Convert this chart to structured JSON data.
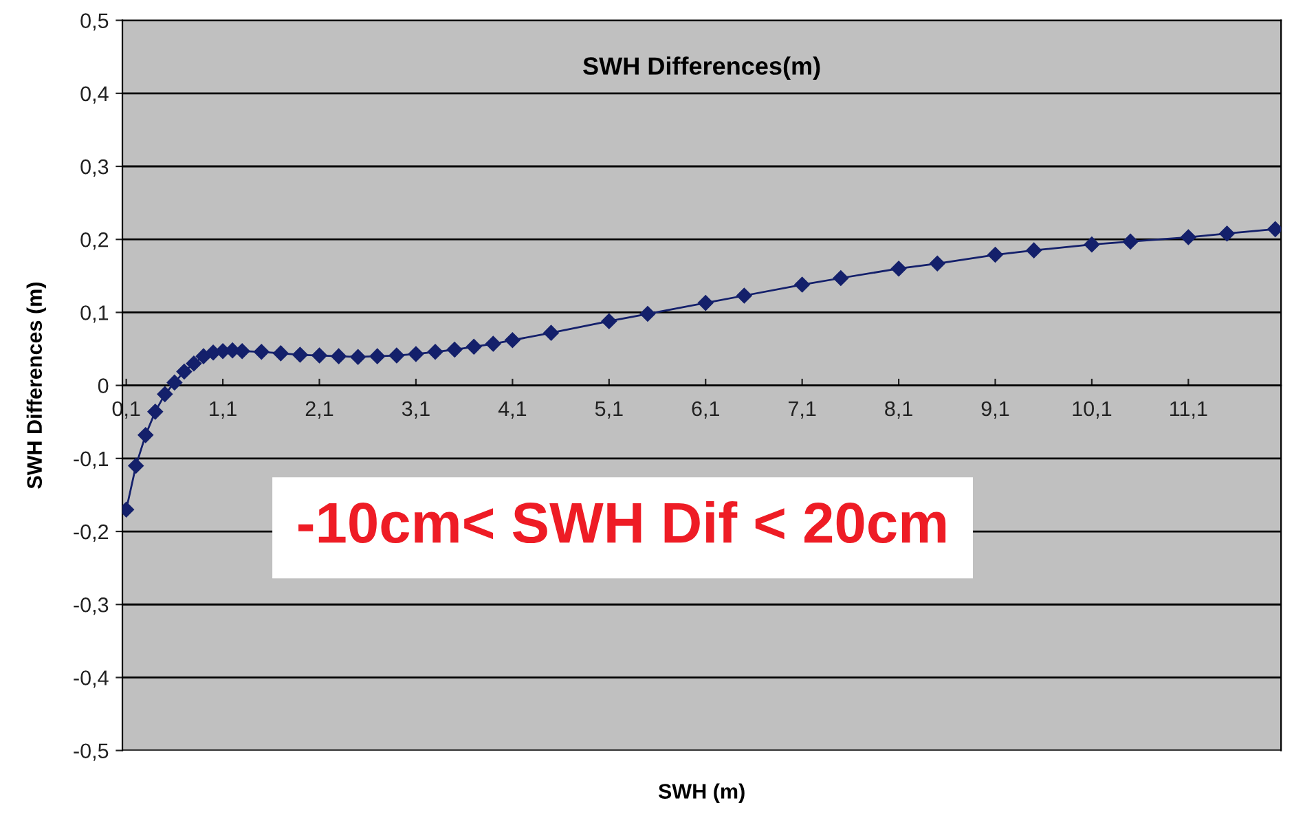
{
  "chart_data": {
    "type": "line",
    "title": "SWH Differences(m)",
    "xlabel": "SWH (m)",
    "ylabel": "SWH Differences (m)",
    "x": [
      0.1,
      0.2,
      0.3,
      0.4,
      0.5,
      0.6,
      0.7,
      0.8,
      0.9,
      1.0,
      1.1,
      1.2,
      1.3,
      1.5,
      1.7,
      1.9,
      2.1,
      2.3,
      2.5,
      2.7,
      2.9,
      3.1,
      3.3,
      3.5,
      3.7,
      3.9,
      4.1,
      4.5,
      5.1,
      5.5,
      6.1,
      6.5,
      7.1,
      7.5,
      8.1,
      8.5,
      9.1,
      9.5,
      10.1,
      10.5,
      11.1,
      11.5,
      12.0
    ],
    "series": [
      {
        "color": "#14206b",
        "values": [
          -0.17,
          -0.11,
          -0.068,
          -0.036,
          -0.012,
          0.004,
          0.019,
          0.03,
          0.04,
          0.045,
          0.047,
          0.048,
          0.047,
          0.046,
          0.044,
          0.042,
          0.041,
          0.04,
          0.039,
          0.04,
          0.041,
          0.043,
          0.046,
          0.049,
          0.053,
          0.057,
          0.062,
          0.072,
          0.088,
          0.098,
          0.113,
          0.123,
          0.138,
          0.147,
          0.16,
          0.167,
          0.179,
          0.185,
          0.193,
          0.197,
          0.203,
          0.208,
          0.214
        ]
      }
    ],
    "marker": "diamond",
    "line_style": "solid",
    "grid": "y",
    "legend": false,
    "xlim": [
      0.06,
      12.06
    ],
    "xticks": [
      {
        "value": 0.1,
        "label": "0,1"
      },
      {
        "value": 1.1,
        "label": "1,1"
      },
      {
        "value": 2.1,
        "label": "2,1"
      },
      {
        "value": 3.1,
        "label": "3,1"
      },
      {
        "value": 4.1,
        "label": "4,1"
      },
      {
        "value": 5.1,
        "label": "5,1"
      },
      {
        "value": 6.1,
        "label": "6,1"
      },
      {
        "value": 7.1,
        "label": "7,1"
      },
      {
        "value": 8.1,
        "label": "8,1"
      },
      {
        "value": 9.1,
        "label": "9,1"
      },
      {
        "value": 10.1,
        "label": "10,1"
      },
      {
        "value": 11.1,
        "label": "11,1"
      }
    ],
    "ylim": [
      -0.5,
      0.5
    ],
    "yticks": [
      {
        "value": -0.5,
        "label": "-0,5"
      },
      {
        "value": -0.4,
        "label": "-0,4"
      },
      {
        "value": -0.3,
        "label": "-0,3"
      },
      {
        "value": -0.2,
        "label": "-0,2"
      },
      {
        "value": -0.1,
        "label": "-0,1"
      },
      0,
      {
        "value": 0.1,
        "label": "0,1"
      },
      {
        "value": 0.2,
        "label": "0,2"
      },
      {
        "value": 0.3,
        "label": "0,3"
      },
      {
        "value": 0.4,
        "label": "0,4"
      },
      {
        "value": 0.5,
        "label": "0,5"
      }
    ],
    "annotations": [
      "-10cm< SWH Dif < 20cm"
    ]
  }
}
